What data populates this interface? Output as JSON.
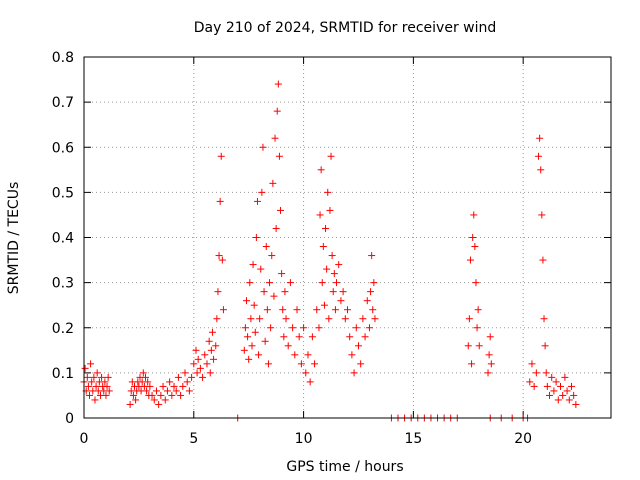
{
  "chart_data": {
    "type": "scatter",
    "title": "Day 210 of 2024, SRMTID for receiver wind",
    "xlabel": "GPS time / hours",
    "ylabel": "SRMTID / TECUs",
    "xlim": [
      0,
      24
    ],
    "ylim": [
      0,
      0.8
    ],
    "xticks": [
      0,
      5,
      10,
      15,
      20
    ],
    "xtick_labels": [
      "0",
      "5",
      "10",
      "15",
      "20"
    ],
    "yticks": [
      0,
      0.1,
      0.2,
      0.3,
      0.4,
      0.5,
      0.6,
      0.7,
      0.8
    ],
    "ytick_labels": [
      "0",
      "0.1",
      "0.2",
      "0.3",
      "0.4",
      "0.5",
      "0.6",
      "0.7",
      "0.8"
    ],
    "grid": true,
    "marker": "+",
    "color": "#ff0000",
    "series": [
      {
        "name": "SRMTID",
        "points": [
          [
            0.0,
            0.08
          ],
          [
            0.05,
            0.11
          ],
          [
            0.1,
            0.06
          ],
          [
            0.15,
            0.09
          ],
          [
            0.2,
            0.07
          ],
          [
            0.25,
            0.05
          ],
          [
            0.3,
            0.12
          ],
          [
            0.35,
            0.08
          ],
          [
            0.4,
            0.06
          ],
          [
            0.45,
            0.09
          ],
          [
            0.5,
            0.04
          ],
          [
            0.55,
            0.07
          ],
          [
            0.6,
            0.1
          ],
          [
            0.65,
            0.06
          ],
          [
            0.7,
            0.08
          ],
          [
            0.75,
            0.05
          ],
          [
            0.8,
            0.09
          ],
          [
            0.85,
            0.07
          ],
          [
            0.9,
            0.06
          ],
          [
            0.95,
            0.08
          ],
          [
            1.0,
            0.05
          ],
          [
            1.05,
            0.07
          ],
          [
            1.1,
            0.09
          ],
          [
            1.15,
            0.06
          ],
          [
            2.1,
            0.03
          ],
          [
            2.15,
            0.06
          ],
          [
            2.2,
            0.08
          ],
          [
            2.25,
            0.05
          ],
          [
            2.3,
            0.07
          ],
          [
            2.35,
            0.04
          ],
          [
            2.4,
            0.06
          ],
          [
            2.45,
            0.08
          ],
          [
            2.5,
            0.07
          ],
          [
            2.55,
            0.09
          ],
          [
            2.6,
            0.06
          ],
          [
            2.65,
            0.08
          ],
          [
            2.7,
            0.1
          ],
          [
            2.75,
            0.07
          ],
          [
            2.8,
            0.09
          ],
          [
            2.85,
            0.06
          ],
          [
            2.9,
            0.08
          ],
          [
            2.95,
            0.05
          ],
          [
            3.0,
            0.07
          ],
          [
            3.1,
            0.05
          ],
          [
            3.2,
            0.04
          ],
          [
            3.3,
            0.06
          ],
          [
            3.4,
            0.03
          ],
          [
            3.5,
            0.05
          ],
          [
            3.6,
            0.07
          ],
          [
            3.7,
            0.04
          ],
          [
            3.8,
            0.06
          ],
          [
            3.9,
            0.08
          ],
          [
            4.0,
            0.05
          ],
          [
            4.1,
            0.07
          ],
          [
            4.2,
            0.06
          ],
          [
            4.3,
            0.09
          ],
          [
            4.4,
            0.05
          ],
          [
            4.5,
            0.07
          ],
          [
            4.6,
            0.1
          ],
          [
            4.7,
            0.08
          ],
          [
            4.8,
            0.06
          ],
          [
            4.9,
            0.09
          ],
          [
            5.0,
            0.12
          ],
          [
            5.1,
            0.15
          ],
          [
            5.15,
            0.1
          ],
          [
            5.2,
            0.13
          ],
          [
            5.3,
            0.11
          ],
          [
            5.4,
            0.09
          ],
          [
            5.5,
            0.14
          ],
          [
            5.6,
            0.12
          ],
          [
            5.7,
            0.17
          ],
          [
            5.75,
            0.1
          ],
          [
            5.8,
            0.15
          ],
          [
            5.85,
            0.19
          ],
          [
            5.9,
            0.13
          ],
          [
            6.0,
            0.16
          ],
          [
            6.05,
            0.22
          ],
          [
            6.1,
            0.28
          ],
          [
            6.15,
            0.36
          ],
          [
            6.2,
            0.48
          ],
          [
            6.25,
            0.58
          ],
          [
            6.3,
            0.35
          ],
          [
            6.35,
            0.24
          ],
          [
            7.0,
            0.0
          ],
          [
            7.3,
            0.15
          ],
          [
            7.35,
            0.2
          ],
          [
            7.4,
            0.26
          ],
          [
            7.45,
            0.18
          ],
          [
            7.5,
            0.13
          ],
          [
            7.55,
            0.3
          ],
          [
            7.6,
            0.22
          ],
          [
            7.65,
            0.16
          ],
          [
            7.7,
            0.34
          ],
          [
            7.75,
            0.25
          ],
          [
            7.8,
            0.19
          ],
          [
            7.85,
            0.4
          ],
          [
            7.9,
            0.48
          ],
          [
            7.95,
            0.14
          ],
          [
            8.0,
            0.22
          ],
          [
            8.05,
            0.33
          ],
          [
            8.1,
            0.5
          ],
          [
            8.15,
            0.6
          ],
          [
            8.2,
            0.28
          ],
          [
            8.25,
            0.17
          ],
          [
            8.3,
            0.38
          ],
          [
            8.35,
            0.24
          ],
          [
            8.4,
            0.12
          ],
          [
            8.45,
            0.3
          ],
          [
            8.5,
            0.2
          ],
          [
            8.55,
            0.36
          ],
          [
            8.6,
            0.52
          ],
          [
            8.65,
            0.27
          ],
          [
            8.7,
            0.62
          ],
          [
            8.75,
            0.42
          ],
          [
            8.8,
            0.68
          ],
          [
            8.85,
            0.74
          ],
          [
            8.9,
            0.58
          ],
          [
            8.95,
            0.46
          ],
          [
            9.0,
            0.32
          ],
          [
            9.05,
            0.24
          ],
          [
            9.1,
            0.18
          ],
          [
            9.15,
            0.28
          ],
          [
            9.2,
            0.22
          ],
          [
            9.3,
            0.16
          ],
          [
            9.4,
            0.3
          ],
          [
            9.5,
            0.2
          ],
          [
            9.6,
            0.14
          ],
          [
            9.7,
            0.24
          ],
          [
            9.8,
            0.18
          ],
          [
            9.9,
            0.12
          ],
          [
            10.0,
            0.2
          ],
          [
            10.1,
            0.1
          ],
          [
            10.2,
            0.14
          ],
          [
            10.3,
            0.08
          ],
          [
            10.4,
            0.18
          ],
          [
            10.5,
            0.12
          ],
          [
            10.6,
            0.24
          ],
          [
            10.7,
            0.2
          ],
          [
            10.75,
            0.45
          ],
          [
            10.8,
            0.55
          ],
          [
            10.85,
            0.3
          ],
          [
            10.9,
            0.38
          ],
          [
            10.95,
            0.25
          ],
          [
            11.0,
            0.42
          ],
          [
            11.05,
            0.33
          ],
          [
            11.1,
            0.5
          ],
          [
            11.15,
            0.22
          ],
          [
            11.2,
            0.46
          ],
          [
            11.25,
            0.58
          ],
          [
            11.3,
            0.36
          ],
          [
            11.35,
            0.28
          ],
          [
            11.4,
            0.32
          ],
          [
            11.45,
            0.24
          ],
          [
            11.5,
            0.3
          ],
          [
            11.6,
            0.34
          ],
          [
            11.7,
            0.26
          ],
          [
            11.8,
            0.28
          ],
          [
            11.9,
            0.22
          ],
          [
            12.0,
            0.24
          ],
          [
            12.1,
            0.18
          ],
          [
            12.2,
            0.14
          ],
          [
            12.3,
            0.1
          ],
          [
            12.4,
            0.2
          ],
          [
            12.5,
            0.16
          ],
          [
            12.6,
            0.12
          ],
          [
            12.7,
            0.22
          ],
          [
            12.8,
            0.18
          ],
          [
            12.9,
            0.26
          ],
          [
            13.0,
            0.2
          ],
          [
            13.05,
            0.28
          ],
          [
            13.1,
            0.36
          ],
          [
            13.15,
            0.24
          ],
          [
            13.2,
            0.3
          ],
          [
            13.25,
            0.22
          ],
          [
            14.0,
            0.0
          ],
          [
            14.3,
            0.0
          ],
          [
            14.6,
            0.0
          ],
          [
            14.9,
            0.0
          ],
          [
            15.2,
            0.0
          ],
          [
            15.5,
            0.0
          ],
          [
            15.8,
            0.0
          ],
          [
            16.1,
            0.0
          ],
          [
            16.4,
            0.0
          ],
          [
            16.7,
            0.0
          ],
          [
            17.0,
            0.0
          ],
          [
            17.5,
            0.16
          ],
          [
            17.55,
            0.22
          ],
          [
            17.6,
            0.35
          ],
          [
            17.65,
            0.12
          ],
          [
            17.7,
            0.4
          ],
          [
            17.75,
            0.45
          ],
          [
            17.8,
            0.38
          ],
          [
            17.85,
            0.3
          ],
          [
            17.9,
            0.2
          ],
          [
            17.95,
            0.24
          ],
          [
            18.0,
            0.16
          ],
          [
            18.4,
            0.1
          ],
          [
            18.45,
            0.14
          ],
          [
            18.5,
            0.18
          ],
          [
            18.55,
            0.12
          ],
          [
            18.5,
            0.0
          ],
          [
            19.0,
            0.0
          ],
          [
            19.5,
            0.0
          ],
          [
            20.0,
            0.0
          ],
          [
            20.2,
            0.0
          ],
          [
            20.3,
            0.08
          ],
          [
            20.4,
            0.12
          ],
          [
            20.5,
            0.07
          ],
          [
            20.6,
            0.1
          ],
          [
            20.7,
            0.58
          ],
          [
            20.75,
            0.62
          ],
          [
            20.8,
            0.55
          ],
          [
            20.85,
            0.45
          ],
          [
            20.9,
            0.35
          ],
          [
            20.95,
            0.22
          ],
          [
            21.0,
            0.16
          ],
          [
            21.05,
            0.1
          ],
          [
            21.1,
            0.07
          ],
          [
            21.2,
            0.05
          ],
          [
            21.3,
            0.09
          ],
          [
            21.4,
            0.06
          ],
          [
            21.5,
            0.08
          ],
          [
            21.6,
            0.04
          ],
          [
            21.7,
            0.07
          ],
          [
            21.8,
            0.05
          ],
          [
            21.9,
            0.09
          ],
          [
            22.0,
            0.06
          ],
          [
            22.1,
            0.04
          ],
          [
            22.2,
            0.07
          ],
          [
            22.3,
            0.05
          ],
          [
            22.4,
            0.03
          ]
        ]
      }
    ]
  }
}
